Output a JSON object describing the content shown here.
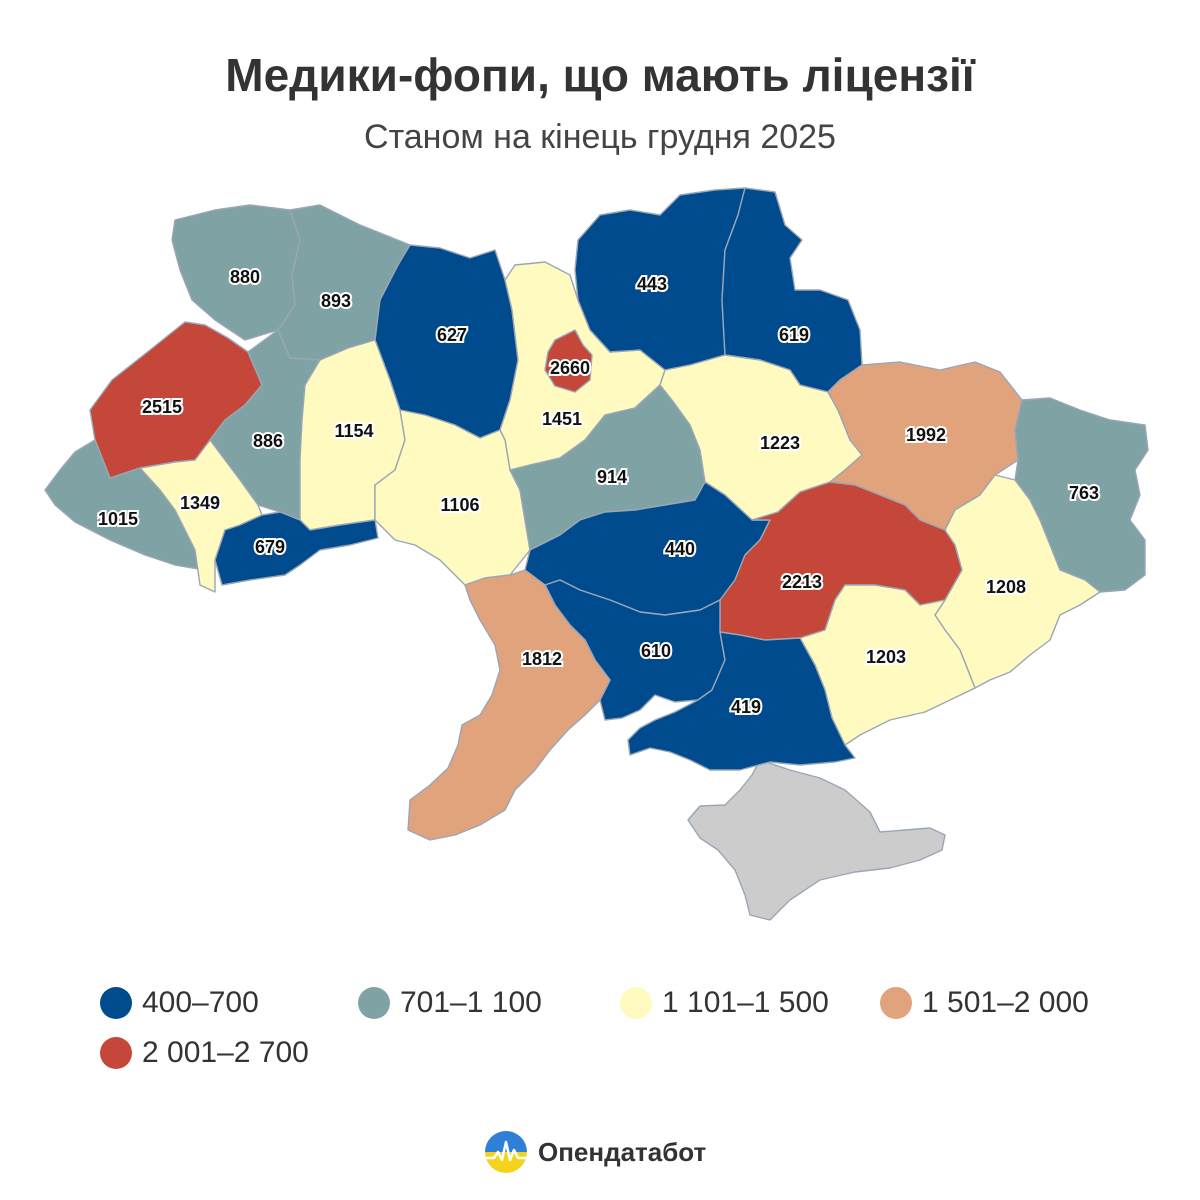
{
  "title": "Медики-фопи, що мають ліцензії",
  "subtitle": "Станом на кінець грудня 2025",
  "colors": {
    "c1": "#004b8d",
    "c2": "#7fa3a5",
    "c3": "#fffac0",
    "c4": "#e1a37c",
    "c5": "#c5473a",
    "crimea": "#cccccc"
  },
  "legend": [
    {
      "label": "400–700",
      "color": "#004b8d"
    },
    {
      "label": "701–1 100",
      "color": "#7fa3a5"
    },
    {
      "label": "1 101–1 500",
      "color": "#fffac0"
    },
    {
      "label": "1 501–2 000",
      "color": "#e1a37c"
    },
    {
      "label": "2 001–2 700",
      "color": "#c5473a"
    }
  ],
  "regions": {
    "volyn": "880",
    "rivne": "893",
    "zhytomyr": "627",
    "chernihiv": "443",
    "sumy": "619",
    "kyiv_city": "2660",
    "kyiv_oblast": "1451",
    "lviv": "2515",
    "ternopil": "886",
    "khmelnytskyi": "1154",
    "vinnytsia": "1106",
    "cherkasy": "914",
    "poltava": "1223",
    "kharkiv": "1992",
    "luhansk": "763",
    "zakarpattia": "1015",
    "ivano_frankivsk": "1349",
    "chernivtsi": "679",
    "kirovohrad": "440",
    "dnipro": "2213",
    "donetsk": "1208",
    "zaporizhzhia": "1203",
    "mykolaiv": "610",
    "kherson": "419",
    "odesa": "1812"
  },
  "brand": {
    "name": "Опендатабот"
  }
}
